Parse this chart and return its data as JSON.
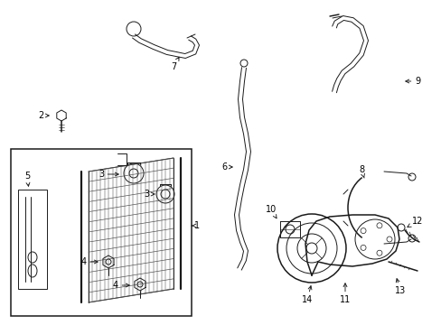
{
  "background_color": "#ffffff",
  "line_color": "#1a1a1a",
  "text_color": "#000000",
  "figsize": [
    4.89,
    3.6
  ],
  "dpi": 100,
  "lw_thin": 0.7,
  "lw_med": 1.1,
  "lw_thick": 1.6
}
